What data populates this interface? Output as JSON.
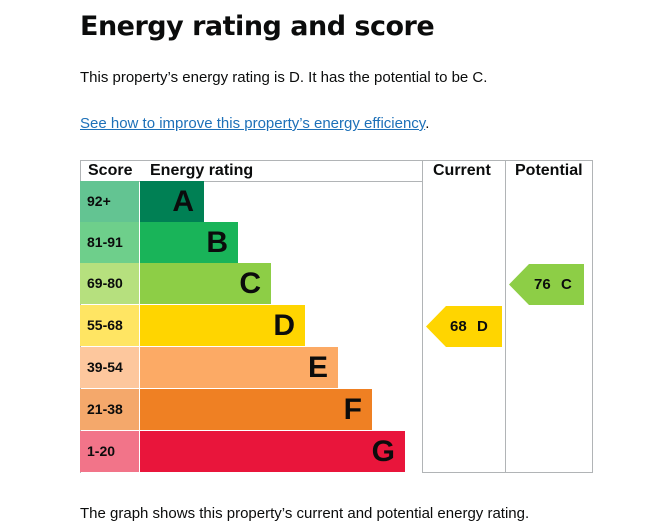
{
  "page": {
    "title": "Energy rating and score",
    "summary": "This property’s energy rating is D. It has the potential to be C.",
    "link_text": "See how to improve this property’s energy efficiency",
    "link_suffix": ".",
    "caption": "The graph shows this property’s current and potential energy rating."
  },
  "chart": {
    "headers": {
      "score": "Score",
      "rating": "Energy rating",
      "current": "Current",
      "potential": "Potential"
    },
    "bands": [
      {
        "range": "92+",
        "letter": "A",
        "bar_color": "#008054",
        "score_bg": "#63c492"
      },
      {
        "range": "81-91",
        "letter": "B",
        "bar_color": "#19b459",
        "score_bg": "#6ecf8b"
      },
      {
        "range": "69-80",
        "letter": "C",
        "bar_color": "#8dce46",
        "score_bg": "#b6e07e"
      },
      {
        "range": "55-68",
        "letter": "D",
        "bar_color": "#ffd500",
        "score_bg": "#ffe563"
      },
      {
        "range": "39-54",
        "letter": "E",
        "bar_color": "#fcaa65",
        "score_bg": "#fdc79d"
      },
      {
        "range": "21-38",
        "letter": "F",
        "bar_color": "#ef8023",
        "score_bg": "#f4a86b"
      },
      {
        "range": "1-20",
        "letter": "G",
        "bar_color": "#e9153b",
        "score_bg": "#f27489"
      }
    ],
    "current": {
      "score": "68",
      "letter": "D",
      "color": "#ffd500"
    },
    "potential": {
      "score": "76",
      "letter": "C",
      "color": "#8dce46"
    }
  }
}
